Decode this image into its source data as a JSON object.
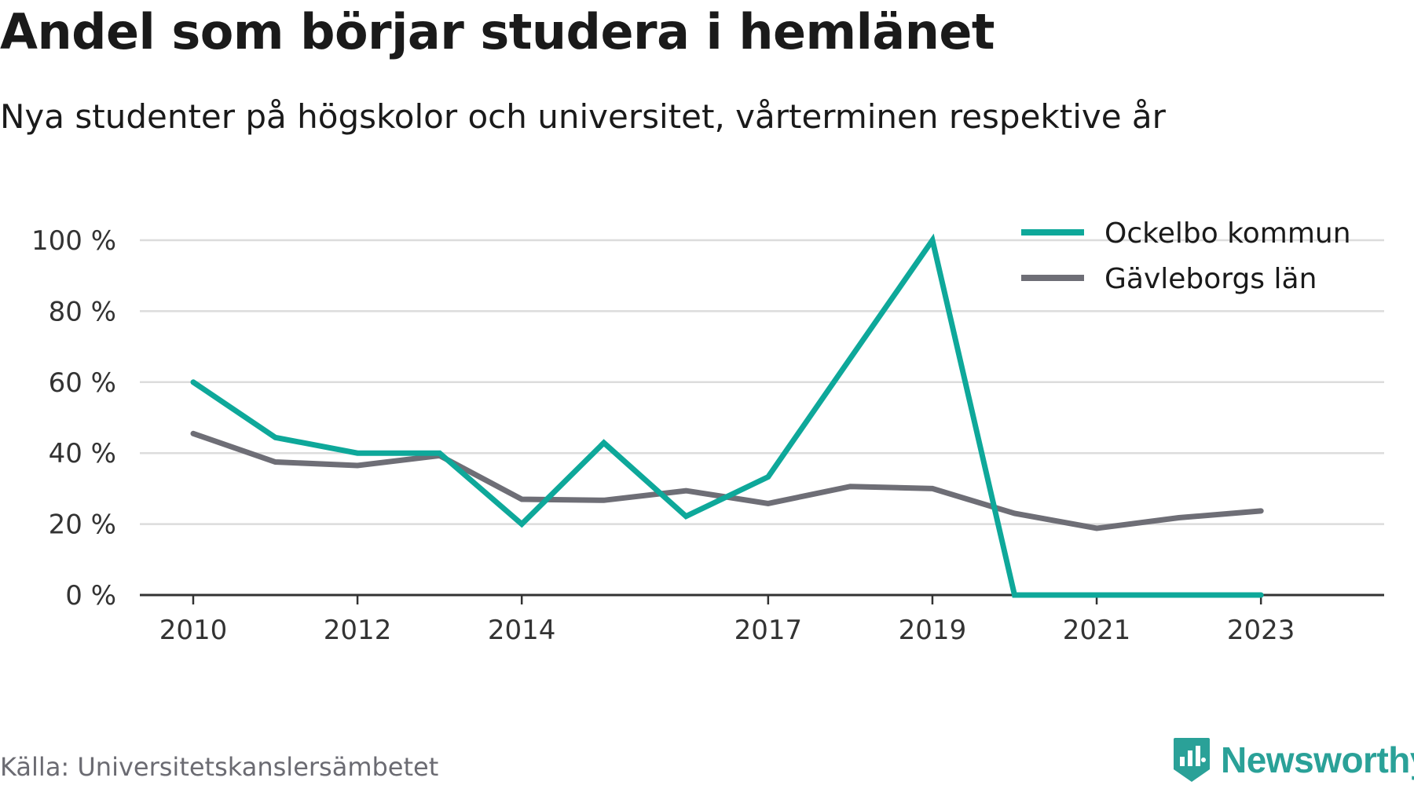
{
  "title": "Andel som börjar studera i hemlänet",
  "subtitle": "Nya studenter på högskolor och universitet, vårterminen respektive år",
  "source": "Källa: Universitetskanslersämbetet",
  "logo_text": "Newsworthy",
  "colors": {
    "ockelbo": "#0ea89a",
    "gavleborg": "#6e6e76",
    "grid": "#dcdcdc",
    "axis": "#333333",
    "brand": "#2aa198"
  },
  "chart_data": {
    "type": "line",
    "x": [
      2010,
      2011,
      2012,
      2013,
      2014,
      2015,
      2016,
      2017,
      2018,
      2019,
      2020,
      2021,
      2022,
      2023
    ],
    "x_tick_labels": [
      "2010",
      "2012",
      "2014",
      "2017",
      "2019",
      "2021",
      "2023"
    ],
    "y_tick_labels": [
      "0 %",
      "20 %",
      "40 %",
      "60 %",
      "80 %",
      "100 %"
    ],
    "y_ticks": [
      0,
      20,
      40,
      60,
      80,
      100
    ],
    "ylim": [
      0,
      100
    ],
    "xlim": [
      2009.35,
      2024.5
    ],
    "grid": true,
    "legend_position": "top-right",
    "series": [
      {
        "name": "Ockelbo kommun",
        "color": "#0ea89a",
        "values": [
          60,
          44.4,
          40,
          40,
          20,
          42.9,
          22.2,
          33.3,
          66.7,
          100,
          0,
          0,
          0,
          0
        ]
      },
      {
        "name": "Gävleborgs län",
        "color": "#6e6e76",
        "values": [
          45.5,
          37.5,
          36.5,
          39.3,
          27,
          26.7,
          29.4,
          25.8,
          30.6,
          30,
          23,
          18.8,
          21.8,
          23.7
        ]
      }
    ]
  }
}
